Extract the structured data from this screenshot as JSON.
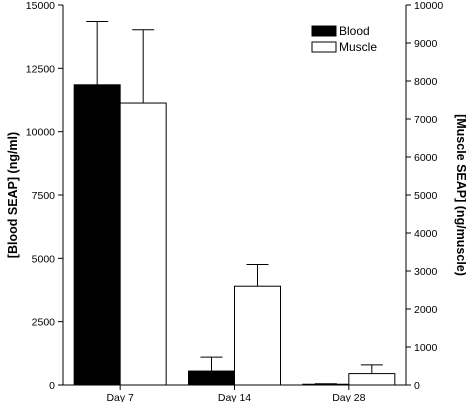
{
  "chart_data": {
    "type": "bar",
    "categories": [
      "Day 7",
      "Day 14",
      "Day 28"
    ],
    "series": [
      {
        "name": "Blood",
        "axis": "left",
        "color": "#000000",
        "values": [
          11850,
          550,
          30
        ],
        "error_upper": [
          14350,
          1100,
          50
        ]
      },
      {
        "name": "Muscle",
        "axis": "right",
        "color": "#ffffff",
        "values": [
          7420,
          2600,
          300
        ],
        "error_upper": [
          9350,
          3170,
          530
        ]
      }
    ],
    "ylabel": "[Blood SEAP] (ng/ml)",
    "ylabel_right": "[Muscle SEAP] (ng/muscle)",
    "ylim": [
      0,
      15000
    ],
    "ylim_right": [
      0,
      10000
    ],
    "yticks": [
      0,
      2500,
      5000,
      7500,
      10000,
      12500,
      15000
    ],
    "yticks_right": [
      0,
      1000,
      2000,
      3000,
      4000,
      5000,
      6000,
      7000,
      8000,
      9000,
      10000
    ],
    "legend": {
      "position": "top-right",
      "entries": [
        "Blood",
        "Muscle"
      ]
    },
    "grid": false
  }
}
